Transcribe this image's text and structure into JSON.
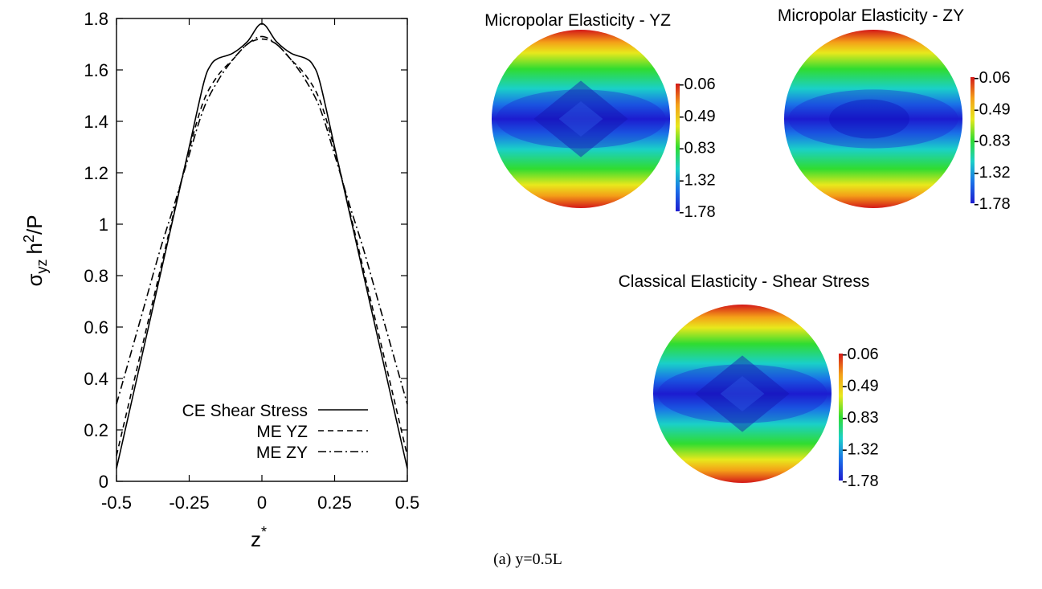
{
  "caption": "(a) y=0.5L",
  "chart_data": [
    {
      "type": "line",
      "title": "",
      "xlabel": "z",
      "xlabel_sup": "*",
      "ylabel_parts": {
        "sigma": "σ",
        "sub": "yz",
        "h": "h",
        "sup": "2",
        "rest": "/P"
      },
      "xlim": [
        -0.5,
        0.5
      ],
      "ylim": [
        0,
        1.8
      ],
      "xticks": [
        -0.5,
        -0.25,
        0,
        0.25,
        0.5
      ],
      "xtick_labels": [
        "-0.5",
        "-0.25",
        "0",
        "0.25",
        "0.5"
      ],
      "yticks": [
        0,
        0.2,
        0.4,
        0.6,
        0.8,
        1,
        1.2,
        1.4,
        1.6,
        1.8
      ],
      "ytick_labels": [
        "0",
        "0.2",
        "0.4",
        "0.6",
        "0.8",
        "1",
        "1.2",
        "1.4",
        "1.6",
        "1.8"
      ],
      "grid": false,
      "legend_position": "bottom-center",
      "series": [
        {
          "name": "CE Shear Stress",
          "dash": "solid",
          "x": [
            -0.5,
            -0.45,
            -0.4,
            -0.35,
            -0.3,
            -0.25,
            -0.2,
            -0.175,
            -0.15,
            -0.1,
            -0.05,
            0,
            0.05,
            0.1,
            0.15,
            0.175,
            0.2,
            0.25,
            0.3,
            0.35,
            0.4,
            0.45,
            0.5
          ],
          "values": [
            0.05,
            0.3,
            0.55,
            0.8,
            1.05,
            1.3,
            1.55,
            1.62,
            1.645,
            1.665,
            1.71,
            1.78,
            1.71,
            1.665,
            1.645,
            1.62,
            1.55,
            1.3,
            1.05,
            0.8,
            0.55,
            0.3,
            0.05
          ]
        },
        {
          "name": "ME YZ",
          "dash": "dashed",
          "x": [
            -0.5,
            -0.45,
            -0.4,
            -0.35,
            -0.3,
            -0.25,
            -0.2,
            -0.15,
            -0.1,
            -0.05,
            0,
            0.05,
            0.1,
            0.15,
            0.2,
            0.25,
            0.3,
            0.35,
            0.4,
            0.45,
            0.5
          ],
          "values": [
            0.1,
            0.34,
            0.58,
            0.82,
            1.06,
            1.29,
            1.48,
            1.58,
            1.64,
            1.7,
            1.72,
            1.7,
            1.64,
            1.58,
            1.48,
            1.29,
            1.06,
            0.82,
            0.58,
            0.34,
            0.1
          ]
        },
        {
          "name": "ME ZY",
          "dash": "dash-dot",
          "x": [
            -0.5,
            -0.45,
            -0.4,
            -0.35,
            -0.3,
            -0.25,
            -0.2,
            -0.15,
            -0.1,
            -0.05,
            0,
            0.05,
            0.1,
            0.15,
            0.2,
            0.25,
            0.3,
            0.35,
            0.4,
            0.45,
            0.5
          ],
          "values": [
            0.3,
            0.5,
            0.7,
            0.9,
            1.08,
            1.27,
            1.45,
            1.56,
            1.64,
            1.7,
            1.73,
            1.7,
            1.64,
            1.56,
            1.45,
            1.27,
            1.08,
            0.9,
            0.7,
            0.5,
            0.3
          ]
        }
      ]
    },
    {
      "type": "heatmap",
      "title": "Micropolar Elasticity - YZ",
      "colorbar_ticks": [
        "-0.06",
        "-0.49",
        "-0.83",
        "-1.32",
        "-1.78"
      ],
      "colorscale": [
        "#d41818",
        "#f4a018",
        "#e8e81c",
        "#30dc30",
        "#1ad0c8",
        "#1a70e8",
        "#1c1cd0"
      ],
      "pattern": "diamond"
    },
    {
      "type": "heatmap",
      "title": "Micropolar Elasticity - ZY",
      "colorbar_ticks": [
        "-0.06",
        "-0.49",
        "-0.83",
        "-1.32",
        "-1.78"
      ],
      "colorscale": [
        "#d41818",
        "#f4a018",
        "#e8e81c",
        "#30dc30",
        "#1ad0c8",
        "#1a70e8",
        "#1c1cd0"
      ],
      "pattern": "smooth"
    },
    {
      "type": "heatmap",
      "title": "Classical Elasticity - Shear Stress",
      "colorbar_ticks": [
        "-0.06",
        "-0.49",
        "-0.83",
        "-1.32",
        "-1.78"
      ],
      "colorscale": [
        "#d41818",
        "#f4a018",
        "#e8e81c",
        "#30dc30",
        "#1ad0c8",
        "#1a70e8",
        "#1c1cd0"
      ],
      "pattern": "diamond"
    }
  ]
}
